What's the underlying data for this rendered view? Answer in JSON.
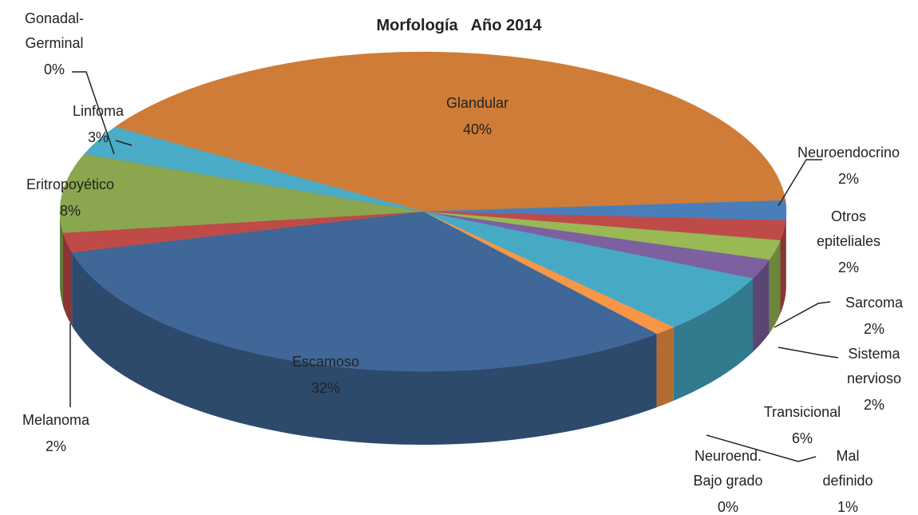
{
  "chart_data": {
    "type": "pie3d",
    "title": "Morfología   Año 2014",
    "categories": [
      "Glandular",
      "Neuroendocrino",
      "Otros epiteliales",
      "Sarcoma",
      "Sistema nervioso",
      "Transicional",
      "Mal definido",
      "Neuroend. Bajo grado",
      "Escamoso",
      "Melanoma",
      "Eritropoyético",
      "Gonadal-Germinal",
      "Linfoma"
    ],
    "values": [
      40,
      2,
      2,
      2,
      2,
      6,
      1,
      0,
      32,
      2,
      8,
      0,
      3
    ],
    "value_labels": [
      "40%",
      "2%",
      "2%",
      "2%",
      "2%",
      "6%",
      "1%",
      "0%",
      "32%",
      "2%",
      "8%",
      "0%",
      "3%"
    ],
    "colors": [
      "#cf7c38",
      "#4a7ebb",
      "#be4b48",
      "#98b954",
      "#7d60a0",
      "#46aac5",
      "#f79646",
      "#aabad7",
      "#3f6797",
      "#be4b48",
      "#8aa64f",
      "#7d60a0",
      "#4aacc6"
    ]
  }
}
